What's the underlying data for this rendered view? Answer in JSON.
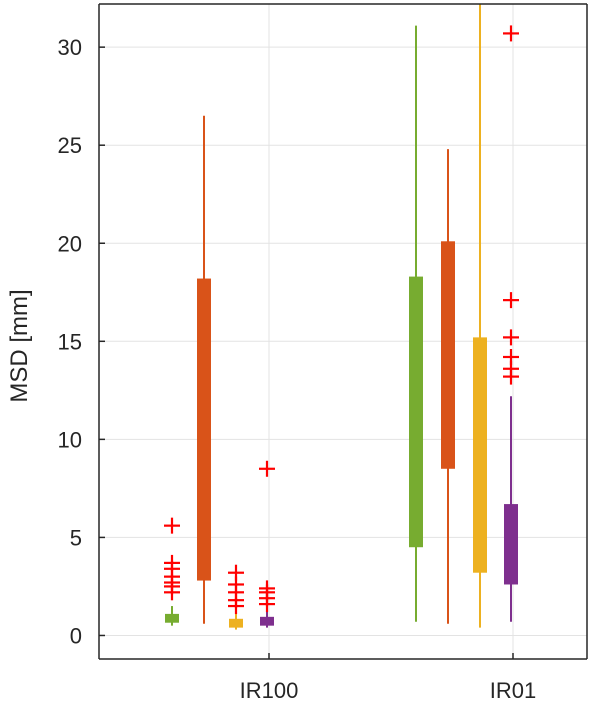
{
  "chart_data": {
    "type": "boxplot",
    "ylabel": "MSD [mm]",
    "ylim": [
      -1.2,
      32.2
    ],
    "yticks": [
      0,
      5,
      10,
      15,
      20,
      25,
      30
    ],
    "grid": true,
    "categories": [
      "IR100",
      "IR01"
    ],
    "colors": [
      "#77ac30",
      "#d95319",
      "#edb120",
      "#7e2f8e"
    ],
    "outlier_color": "#ff0000",
    "groups": [
      {
        "category": "IR100",
        "boxes": [
          {
            "whisker_low": 0.5,
            "q1": 0.65,
            "q3": 1.1,
            "whisker_high": 1.5,
            "outliers": [
              2.2,
              2.5,
              2.7,
              3.0,
              3.4,
              3.7,
              5.6
            ]
          },
          {
            "whisker_low": 0.6,
            "q1": 2.8,
            "q3": 18.2,
            "whisker_high": 26.5,
            "outliers": []
          },
          {
            "whisker_low": 0.3,
            "q1": 0.4,
            "q3": 0.85,
            "whisker_high": 1.2,
            "outliers": [
              1.5,
              1.8,
              2.2,
              2.6,
              3.2
            ]
          },
          {
            "whisker_low": 0.4,
            "q1": 0.5,
            "q3": 0.95,
            "whisker_high": 1.3,
            "outliers": [
              1.6,
              1.9,
              2.2,
              2.4,
              8.5
            ]
          }
        ]
      },
      {
        "category": "IR01",
        "boxes": [
          {
            "whisker_low": 0.7,
            "q1": 4.5,
            "q3": 18.3,
            "whisker_high": 31.1,
            "outliers": []
          },
          {
            "whisker_low": 0.6,
            "q1": 8.5,
            "q3": 20.1,
            "whisker_high": 24.8,
            "outliers": []
          },
          {
            "whisker_low": 0.4,
            "q1": 3.2,
            "q3": 15.2,
            "whisker_high": 32.2,
            "outliers": []
          },
          {
            "whisker_low": 0.7,
            "q1": 2.6,
            "q3": 6.7,
            "whisker_high": 12.2,
            "outliers": [
              13.2,
              13.6,
              14.2,
              15.2,
              17.1,
              30.7
            ]
          }
        ]
      }
    ]
  }
}
